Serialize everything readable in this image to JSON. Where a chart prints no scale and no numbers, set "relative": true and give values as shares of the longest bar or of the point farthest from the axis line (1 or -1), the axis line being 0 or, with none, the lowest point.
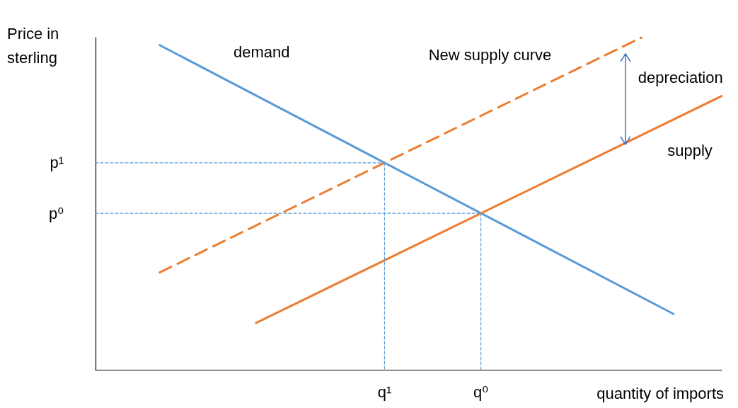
{
  "chart_data": {
    "type": "line",
    "relative": true,
    "xlabel": "quantity of imports",
    "ylabel": "Price in sterling",
    "grid": false,
    "legend": false,
    "marker": "none",
    "categories": [
      null,
      null,
      null,
      null,
      null,
      null,
      null,
      null,
      null,
      null,
      null,
      null,
      null,
      null,
      null,
      null,
      null,
      null,
      "q¹",
      null,
      null,
      null,
      null,
      null,
      "q⁰",
      null,
      null,
      null,
      null,
      null,
      null,
      null,
      null,
      null,
      null,
      null,
      null,
      null,
      null,
      null
    ],
    "series": [
      {
        "name": "demand",
        "color": "#5b9bd5",
        "line_style": "solid",
        "values": [
          null,
          null,
          null,
          null,
          0.977,
          null,
          null,
          null,
          null,
          null,
          null,
          null,
          null,
          null,
          null,
          null,
          null,
          null,
          null,
          null,
          null,
          null,
          null,
          null,
          null,
          null,
          null,
          null,
          null,
          null,
          null,
          null,
          null,
          null,
          null,
          null,
          0.168,
          null,
          null,
          null
        ]
      },
      {
        "name": "supply",
        "color": "#ed7d31",
        "line_style": "solid",
        "values": [
          null,
          null,
          null,
          null,
          null,
          null,
          null,
          null,
          null,
          null,
          0.141,
          null,
          null,
          null,
          null,
          null,
          null,
          null,
          null,
          null,
          null,
          null,
          null,
          null,
          null,
          null,
          null,
          null,
          null,
          null,
          null,
          null,
          null,
          null,
          null,
          null,
          null,
          null,
          null,
          0.824
        ]
      },
      {
        "name": "New supply curve",
        "color": "#ed7d31",
        "line_style": "dashed",
        "values": [
          null,
          null,
          null,
          null,
          0.293,
          null,
          null,
          null,
          null,
          null,
          null,
          null,
          null,
          null,
          null,
          null,
          null,
          null,
          null,
          null,
          null,
          null,
          null,
          null,
          null,
          null,
          null,
          null,
          null,
          null,
          null,
          null,
          null,
          null,
          1,
          null,
          null,
          null,
          null,
          null
        ]
      },
      {
        "color": "#5b9bd5",
        "line_style": "dotted",
        "values": [
          0.623,
          null,
          null,
          null,
          null,
          null,
          null,
          null,
          null,
          null,
          null,
          null,
          null,
          null,
          null,
          null,
          null,
          null,
          0.623,
          null,
          null,
          null,
          null,
          null,
          null,
          null,
          null,
          null,
          null,
          null,
          null,
          null,
          null,
          null,
          null,
          null,
          null,
          null,
          null,
          null
        ]
      },
      {
        "color": "#5b9bd5",
        "line_style": "dotted",
        "values": [
          0.471,
          null,
          null,
          null,
          null,
          null,
          null,
          null,
          null,
          null,
          null,
          null,
          null,
          null,
          null,
          null,
          null,
          null,
          null,
          null,
          null,
          null,
          null,
          null,
          0.471,
          null,
          null,
          null,
          null,
          null,
          null,
          null,
          null,
          null,
          null,
          null,
          null,
          null,
          null,
          null
        ]
      },
      {
        "color": "#5b9bd5",
        "line_style": "dotted",
        "x": [
          "q¹",
          "q¹"
        ],
        "values": [
          0.623,
          0
        ]
      },
      {
        "color": "#5b9bd5",
        "line_style": "dotted",
        "x": [
          "q⁰",
          "q⁰"
        ],
        "values": [
          0.471,
          0
        ]
      }
    ],
    "annotations": [
      "depreciation",
      "p¹",
      "p⁰"
    ]
  }
}
